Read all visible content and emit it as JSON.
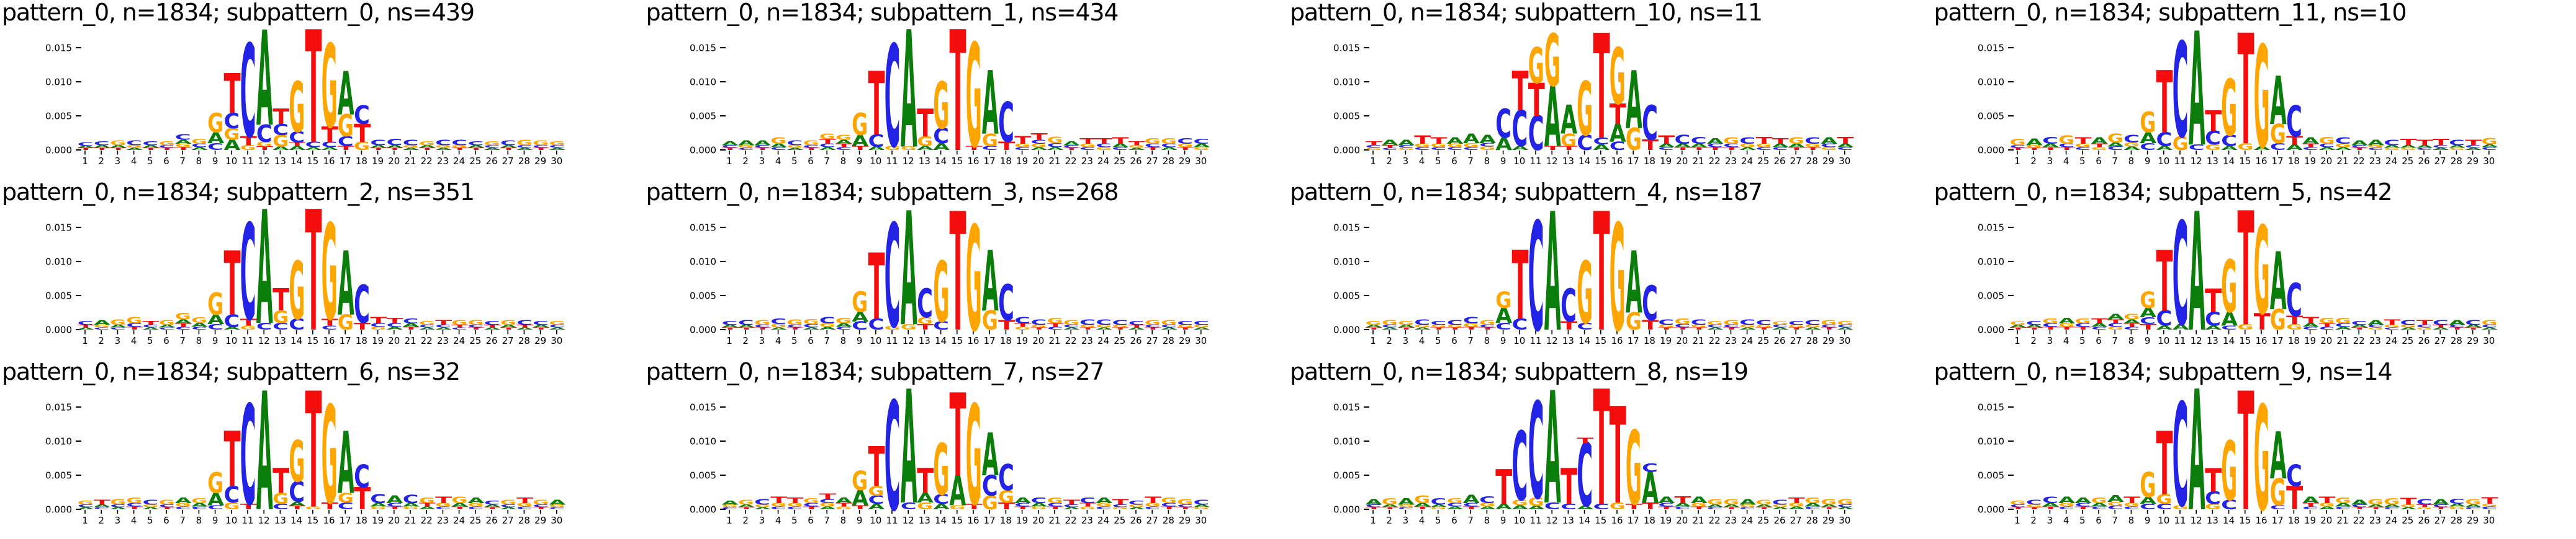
{
  "figure": {
    "background": "#ffffff",
    "rows": 3,
    "cols": 4
  },
  "letter_colors": {
    "A": "#0b7d0b",
    "C": "#2323e6",
    "G": "#ffa500",
    "T": "#f50d0d"
  },
  "axes": {
    "unit": 0.0001,
    "ylim": [
      0,
      0.0178
    ],
    "y_ticks": [
      "0.000",
      "0.005",
      "0.010",
      "0.015"
    ],
    "y_values_milli": [
      0,
      50,
      100,
      150
    ],
    "x_ticks": [
      1,
      2,
      3,
      4,
      5,
      6,
      7,
      8,
      9,
      10,
      11,
      12,
      13,
      14,
      15,
      16,
      17,
      18,
      19,
      20,
      21,
      22,
      23,
      24,
      25,
      26,
      27,
      28,
      29,
      30
    ]
  },
  "chart_data": [
    {
      "title": "pattern_0, n=1834; subpattern_0, ns=439",
      "pattern": "pattern_0",
      "n": 1834,
      "subpattern": "subpattern_0",
      "ns": 439,
      "type": "sequence_logo",
      "stacks": [
        "T:3,A:3,C:5",
        "T:3,A:4,C:6",
        "T:3,A:4,G:7",
        "A:3,G:4,C:7",
        "T:3,A:4,C:6",
        "T:3,C:4,G:6",
        "T:4,G:5,A:6,C:8",
        "A:4,C:5,G:7",
        "C:10,A:16,G:28",
        "A:15,G:17,C:22,T:58",
        "G:7,T:13,C:135",
        "T:5,G:7,C:25,A:138",
        "A:5,G:17,C:16,T:22",
        "A:6,T:5,C:16,G:73",
        "A:4,C:8,T:163",
        "A:4,C:8,T:22,G:121",
        "T:6,C:14,G:32,A:63",
        "G:12,T:26,C:27",
        "T:3,A:4,C:8",
        "T:3,A:4,C:9",
        "A:3,G:4,C:8",
        "T:3,A:4,G:6",
        "A:3,G:4,C:8",
        "T:3,G:4,C:8",
        "T:3,A:4,C:6",
        "A:3,C:4,G:6",
        "T:3,A:4,C:7",
        "A:3,C:4,G:8",
        "T:3,C:4,G:7",
        "A:3,C:4,G:6"
      ]
    },
    {
      "title": "pattern_0, n=1834; subpattern_1, ns=434",
      "pattern": "pattern_0",
      "n": 1834,
      "subpattern": "subpattern_1",
      "ns": 434,
      "type": "sequence_logo",
      "stacks": [
        "T:3,C:4,A:6",
        "C:3,G:4,A:7",
        "T:3,C:4,A:7",
        "C:4,A:5,G:9",
        "A:3,G:4,C:7",
        "T:3,C:4,G:7",
        "A:4,C:5,T:7,G:8",
        "C:4,T:5,A:6,G:7",
        "T:6,A:16,G:32",
        "A:5,C:18,T:92",
        "G:6,C:148",
        "G:5,A:170",
        "A:6,G:14,T:40",
        "A:10,C:22,G:68",
        "T:175",
        "T:6,G:150",
        "C:6,G:18,A:92",
        "T:12,C:58",
        "C:4,G:5,T:11",
        "A:4,G:5,C:6,T:9",
        "A:4,C:6,G:9",
        "T:3,C:4,A:6",
        "C:4,G:5,T:8",
        "G:4,C:5,T:8",
        "C:4,A:5,T:9",
        "A:3,G:4,T:6",
        "T:4,C:5,G:8",
        "A:4,C:5,G:8",
        "T:4,G:5,C:8",
        "G:4,A:5,C:7"
      ]
    },
    {
      "title": "pattern_0, n=1834; subpattern_10, ns=11",
      "pattern": "pattern_0",
      "n": 1834,
      "subpattern": "subpattern_10",
      "ns": 11,
      "type": "sequence_logo",
      "stacks": [
        "G:3,C:4,T:6",
        "C:3,T:4,A:8",
        "G:3,C:4,A:8",
        "C:4,G:5,T:12",
        "C:4,G:5,T:9",
        "C:4,G:5,A:9",
        "C:4,G:6,A:14",
        "G:5,C:5,A:12",
        "A:18,C:42",
        "A:6,C:52,T:57",
        "C:50,T:48,G:52",
        "T:6,A:88,G:76",
        "T:6,G:18,A:42",
        "C:22,G:78",
        "A:8,C:10,T:152",
        "C:12,A:26,T:30,G:82",
        "G:32,A:84",
        "T:15,C:50",
        "C:4,A:5,T:12",
        "T:4,A:5,C:13",
        "T:4,A:5,C:10",
        "T:4,C:5,A:8",
        "T:4,C:5,G:9",
        "A:4,G:5,C:9",
        "C:4,G:5,T:10",
        "C:4,A:5,T:8",
        "T:4,A:5,G:9",
        "T:4,G:5,C:9",
        "G:4,C:5,A:9",
        "C:4,A:5,T:10"
      ]
    },
    {
      "title": "pattern_0, n=1834; subpattern_11, ns=10",
      "pattern": "pattern_0",
      "n": 1834,
      "subpattern": "subpattern_11",
      "ns": 10,
      "type": "sequence_logo",
      "stacks": [
        "T:3,C:4,G:9",
        "T:3,G:4,A:10",
        "T:4,A:5,C:10",
        "T:4,C:5,G:12",
        "C:4,G:5,T:9",
        "G:4,T:5,A:9",
        "C:5,A:6,G:13",
        "A:5,G:6,C:11",
        "C:10,A:16,G:30",
        "A:6,C:20,T:90",
        "G:20,C:138",
        "C:8,A:165",
        "G:8,C:20,T:30",
        "A:6,C:16,G:82",
        "G:10,T:160",
        "A:5,G:148",
        "C:10,G:28,A:70",
        "A:8,T:12,C:45",
        "C:4,T:5,A:9",
        "A:4,C:5,G:10",
        "A:4,G:5,C:9",
        "T:3,C:4,A:7",
        "C:3,G:4,A:8",
        "G:3,A:4,C:8",
        "G:3,A:4,T:9",
        "C:3,A:4,T:8",
        "A:3,C:4,T:9",
        "G:3,A:4,C:8",
        "A:3,C:4,T:8",
        "C:4,A:4,G:9"
      ]
    },
    {
      "title": "pattern_0, n=1834; subpattern_2, ns=351",
      "pattern": "pattern_0",
      "n": 1834,
      "subpattern": "subpattern_2",
      "ns": 351,
      "type": "sequence_logo",
      "stacks": [
        "A:3,T:4,C:6",
        "C:3,G:4,A:7",
        "C:3,A:4,G:8",
        "T:4,C:5,G:9",
        "A:3,C:4,T:6",
        "C:3,A:4,G:7",
        "C:4,T:5,A:6,G:9",
        "C:4,A:6,G:8",
        "C:8,A:14,G:32",
        "A:4,C:18,T:93",
        "G:6,T:10,C:139",
        "C:10,A:165",
        "C:10,G:18,T:32",
        "C:16,G:84",
        "T:175",
        "C:6,T:10,G:139",
        "G:22,A:93",
        "T:10,C:55",
        "G:4,C:5,T:9",
        "A:4,C:5,T:8",
        "T:4,A:5,C:7",
        "A:3,C:4,G:6",
        "A:3,C:4,T:7",
        "C:3,T:4,G:7",
        "T:3,C:4,G:7",
        "A:3,T:4,C:6",
        "T:3,A:4,G:7",
        "A:3,T:4,C:7",
        "T:3,A:4,C:6",
        "A:3,C:4,G:6"
      ]
    },
    {
      "title": "pattern_0, n=1834; subpattern_3, ns=268",
      "pattern": "pattern_0",
      "n": 1834,
      "subpattern": "subpattern_3",
      "ns": 268,
      "type": "sequence_logo",
      "stacks": [
        "T:3,A:4,C:6",
        "T:3,A:4,C:7",
        "T:3,C:4,G:7",
        "A:3,G:5,C:8",
        "T:3,C:4,G:8",
        "A:3,C:5,G:7",
        "A:4,G:5,C:9",
        "C:4,A:5,G:8",
        "C:12,A:14,G:30",
        "C:16,T:96",
        "G:5,C:150",
        "G:8,A:165",
        "T:8,G:10,C:42",
        "C:12,G:88",
        "T:172",
        "G:152",
        "G:28,A:88",
        "T:14,C:52",
        "G:4,T:5,C:9",
        "T:3,G:4,C:8",
        "C:4,T:5,G:8",
        "A:3,C:4,G:7",
        "T:3,G:4,C:8",
        "A:3,G:4,C:8",
        "T:3,G:4,C:7",
        "A:3,T:4,C:6",
        "T:3,C:4,G:7",
        "A:3,C:4,G:7",
        "T:3,G:4,C:6",
        "A:3,G:4,C:6"
      ]
    },
    {
      "title": "pattern_0, n=1834; subpattern_4, ns=187",
      "pattern": "pattern_0",
      "n": 1834,
      "subpattern": "subpattern_4",
      "ns": 187,
      "type": "sequence_logo",
      "stacks": [
        "T:3,A:4,G:6",
        "A:3,C:4,G:7",
        "T:3,A:4,G:6",
        "A:3,G:4,C:8",
        "T:3,G:4,C:6",
        "T:3,G:4,C:7",
        "T:4,G:5,C:9",
        "T:3,C:4,G:7",
        "C:10,A:22,G:24",
        "C:16,T:100",
        "C:158",
        "A:172",
        "T:12,C:48",
        "C:10,G:90",
        "T:172",
        "G:155",
        "G:25,A:90",
        "T:14,C:50",
        "T:3,G:4,C:8",
        "T:3,C:5,G:8",
        "T:3,G:4,C:8",
        "A:3,C:4,G:6",
        "T:3,C:4,G:7",
        "A:3,G:4,C:8",
        "T:3,G:4,C:7",
        "A:3,C:4,G:5",
        "T:3,G:4,C:6",
        "A:3,G:4,C:7",
        "T:3,C:4,G:7",
        "A:3,C:4,G:6"
      ]
    },
    {
      "title": "pattern_0, n=1834; subpattern_5, ns=42",
      "pattern": "pattern_0",
      "n": 1834,
      "subpattern": "subpattern_5",
      "ns": 42,
      "type": "sequence_logo",
      "stacks": [
        "T:3,A:4,G:5",
        "T:3,A:4,C:6",
        "T:4,C:5,G:7",
        "T:4,G:5,A:8",
        "T:4,C:5,G:7",
        "C:4,A:5,T:7",
        "G:4,C:5,T:6,A:8",
        "C:4,T:5,A:6,G:8",
        "T:8,C:10,A:14,G:24",
        "A:6,C:22,T:88",
        "A:8,C:150",
        "A:172",
        "A:6,C:20,T:34",
        "C:6,A:20,G:76",
        "G:8,T:165",
        "T:24,G:128",
        "G:30,A:84",
        "G:8,T:12,C:48",
        "C:4,A:5,T:9",
        "C:4,T:5,G:8",
        "A:4,C:5,G:8",
        "T:3,A:4,C:6",
        "G:3,C:4,A:7",
        "C:3,G:4,T:8",
        "A:3,G:4,C:7",
        "G:3,C:4,T:7",
        "A:3,T:4,C:7",
        "T:3,C:4,A:7",
        "T:3,A:4,C:7",
        "A:3,C:4,G:7"
      ]
    },
    {
      "title": "pattern_0, n=1834; subpattern_6, ns=32",
      "pattern": "pattern_0",
      "n": 1834,
      "subpattern": "subpattern_6",
      "ns": 32,
      "type": "sequence_logo",
      "stacks": [
        "A:3,C:4,G:6",
        "C:3,A:4,T:7",
        "A:3,C:4,G:8",
        "T:4,C:5,G:8",
        "A:3,G:4,C:7",
        "T:3,C:4,G:7",
        "C:4,G:5,A:8",
        "C:4,A:5,G:7",
        "C:6,A:18,G:30",
        "G:10,C:24,T:80",
        "T:8,C:145",
        "A:172",
        "C:8,G:16,T:36",
        "T:5,A:6,C:30,G:60",
        "G:4,T:168",
        "T:10,G:142",
        "C:10,G:14,A:90",
        "T:32,C:33",
        "G:4,A:5,C:13",
        "T:4,C:5,A:11",
        "G:4,A:5,C:12",
        "A:4,T:5,G:8",
        "C:4,G:5,T:9",
        "T:4,A:5,G:9",
        "C:4,G:5,A:8",
        "T:3,A:4,C:6",
        "A:3,C:4,G:7",
        "C:4,G:5,T:8",
        "T:3,C:4,G:7",
        "C:3,G:4,A:7"
      ]
    },
    {
      "title": "pattern_0, n=1834; subpattern_7, ns=27",
      "pattern": "pattern_0",
      "n": 1834,
      "subpattern": "subpattern_7",
      "ns": 27,
      "type": "sequence_logo",
      "stacks": [
        "C:3,G:4,A:6",
        "T:3,A:4,G:7",
        "A:3,G:4,C:8",
        "C:4,G:5,T:9",
        "C:4,G:5,T:8",
        "T:4,C:5,G:7",
        "A:4,G:5,C:6,T:8",
        "G:4,T:5,A:8",
        "T:6,A:22,G:28",
        "A:8,C:12,G:14,T:58",
        "C:158",
        "C:10,A:165",
        "G:10,A:14,T:36",
        "A:8,C:14,G:74",
        "G:6,A:44,T:120",
        "T:8,G:145",
        "G:20,C:30,A:62",
        "T:10,G:18,C:38",
        "T:4,C:5,A:8",
        "G:4,A:5,C:8",
        "T:4,C:5,G:8",
        "A:3,C:4,T:7",
        "G:4,T:5,C:8",
        "C:4,G:5,A:8",
        "G:3,C:4,T:8",
        "A:3,G:4,C:6",
        "C:4,G:5,T:9",
        "T:4,C:5,G:8",
        "T:3,C:4,G:8",
        "G:3,A:4,C:7"
      ]
    },
    {
      "title": "pattern_0, n=1834; subpattern_8, ns=19",
      "pattern": "pattern_0",
      "n": 1834,
      "subpattern": "subpattern_8",
      "ns": 19,
      "type": "sequence_logo",
      "stacks": [
        "T:3,C:4,A:8",
        "T:3,A:4,G:9",
        "C:3,G:4,A:9",
        "T:4,A:5,G:11",
        "G:3,A:4,C:9",
        "A:4,C:5,G:7",
        "T:4,C:5,A:12",
        "A:4,G:5,C:10",
        "A:8,T:50",
        "A:6,G:8,C:100",
        "A:5,G:12,C:140",
        "C:10,A:163",
        "C:8,T:52",
        "A:5,C:92,T:8",
        "C:8,T:167",
        "G:10,T:140",
        "T:8,G:107",
        "T:10,A:45,C:12",
        "T:4,C:5,A:9",
        "C:4,A:5,T:10",
        "T:4,G:5,A:9",
        "C:3,A:4,G:8",
        "T:3,A:4,G:8",
        "C:3,G:4,A:8",
        "T:3,A:4,G:7",
        "A:3,G:4,C:7",
        "A:4,G:5,T:8",
        "C:4,A:5,G:8",
        "T:3,A:4,G:8",
        "A:3,C:4,G:8"
      ]
    },
    {
      "title": "pattern_0, n=1834; subpattern_9, ns=14",
      "pattern": "pattern_0",
      "n": 1834,
      "subpattern": "subpattern_9",
      "ns": 14,
      "type": "sequence_logo",
      "stacks": [
        "T:3,C:4,G:6",
        "T:3,G:4,C:7",
        "T:4,A:5,C:9",
        "C:4,G:5,A:9",
        "T:4,C:5,A:8",
        "C:4,A:5,G:8",
        "C:5,G:6,A:10",
        "C:4,G:5,T:9",
        "C:8,A:10,G:36",
        "C:8,G:14,T:92",
        "G:6,C:150",
        "A:175",
        "G:8,C:18,T:34",
        "C:14,G:86",
        "T:172",
        "G:152",
        "C:6,G:39,A:68",
        "T:34,C:31",
        "C:4,T:5,A:9",
        "A:4,G:5,T:9",
        "C:4,A:5,G:8",
        "T:3,C:4,A:7",
        "T:3,A:4,G:8",
        "C:3,A:4,G:9",
        "A:3,G:4,T:10",
        "G:3,T:4,C:8",
        "T:3,C:4,A:8",
        "G:4,A:4,C:7",
        "C:3,A:4,G:8",
        "C:4,G:4,T:9"
      ]
    }
  ]
}
